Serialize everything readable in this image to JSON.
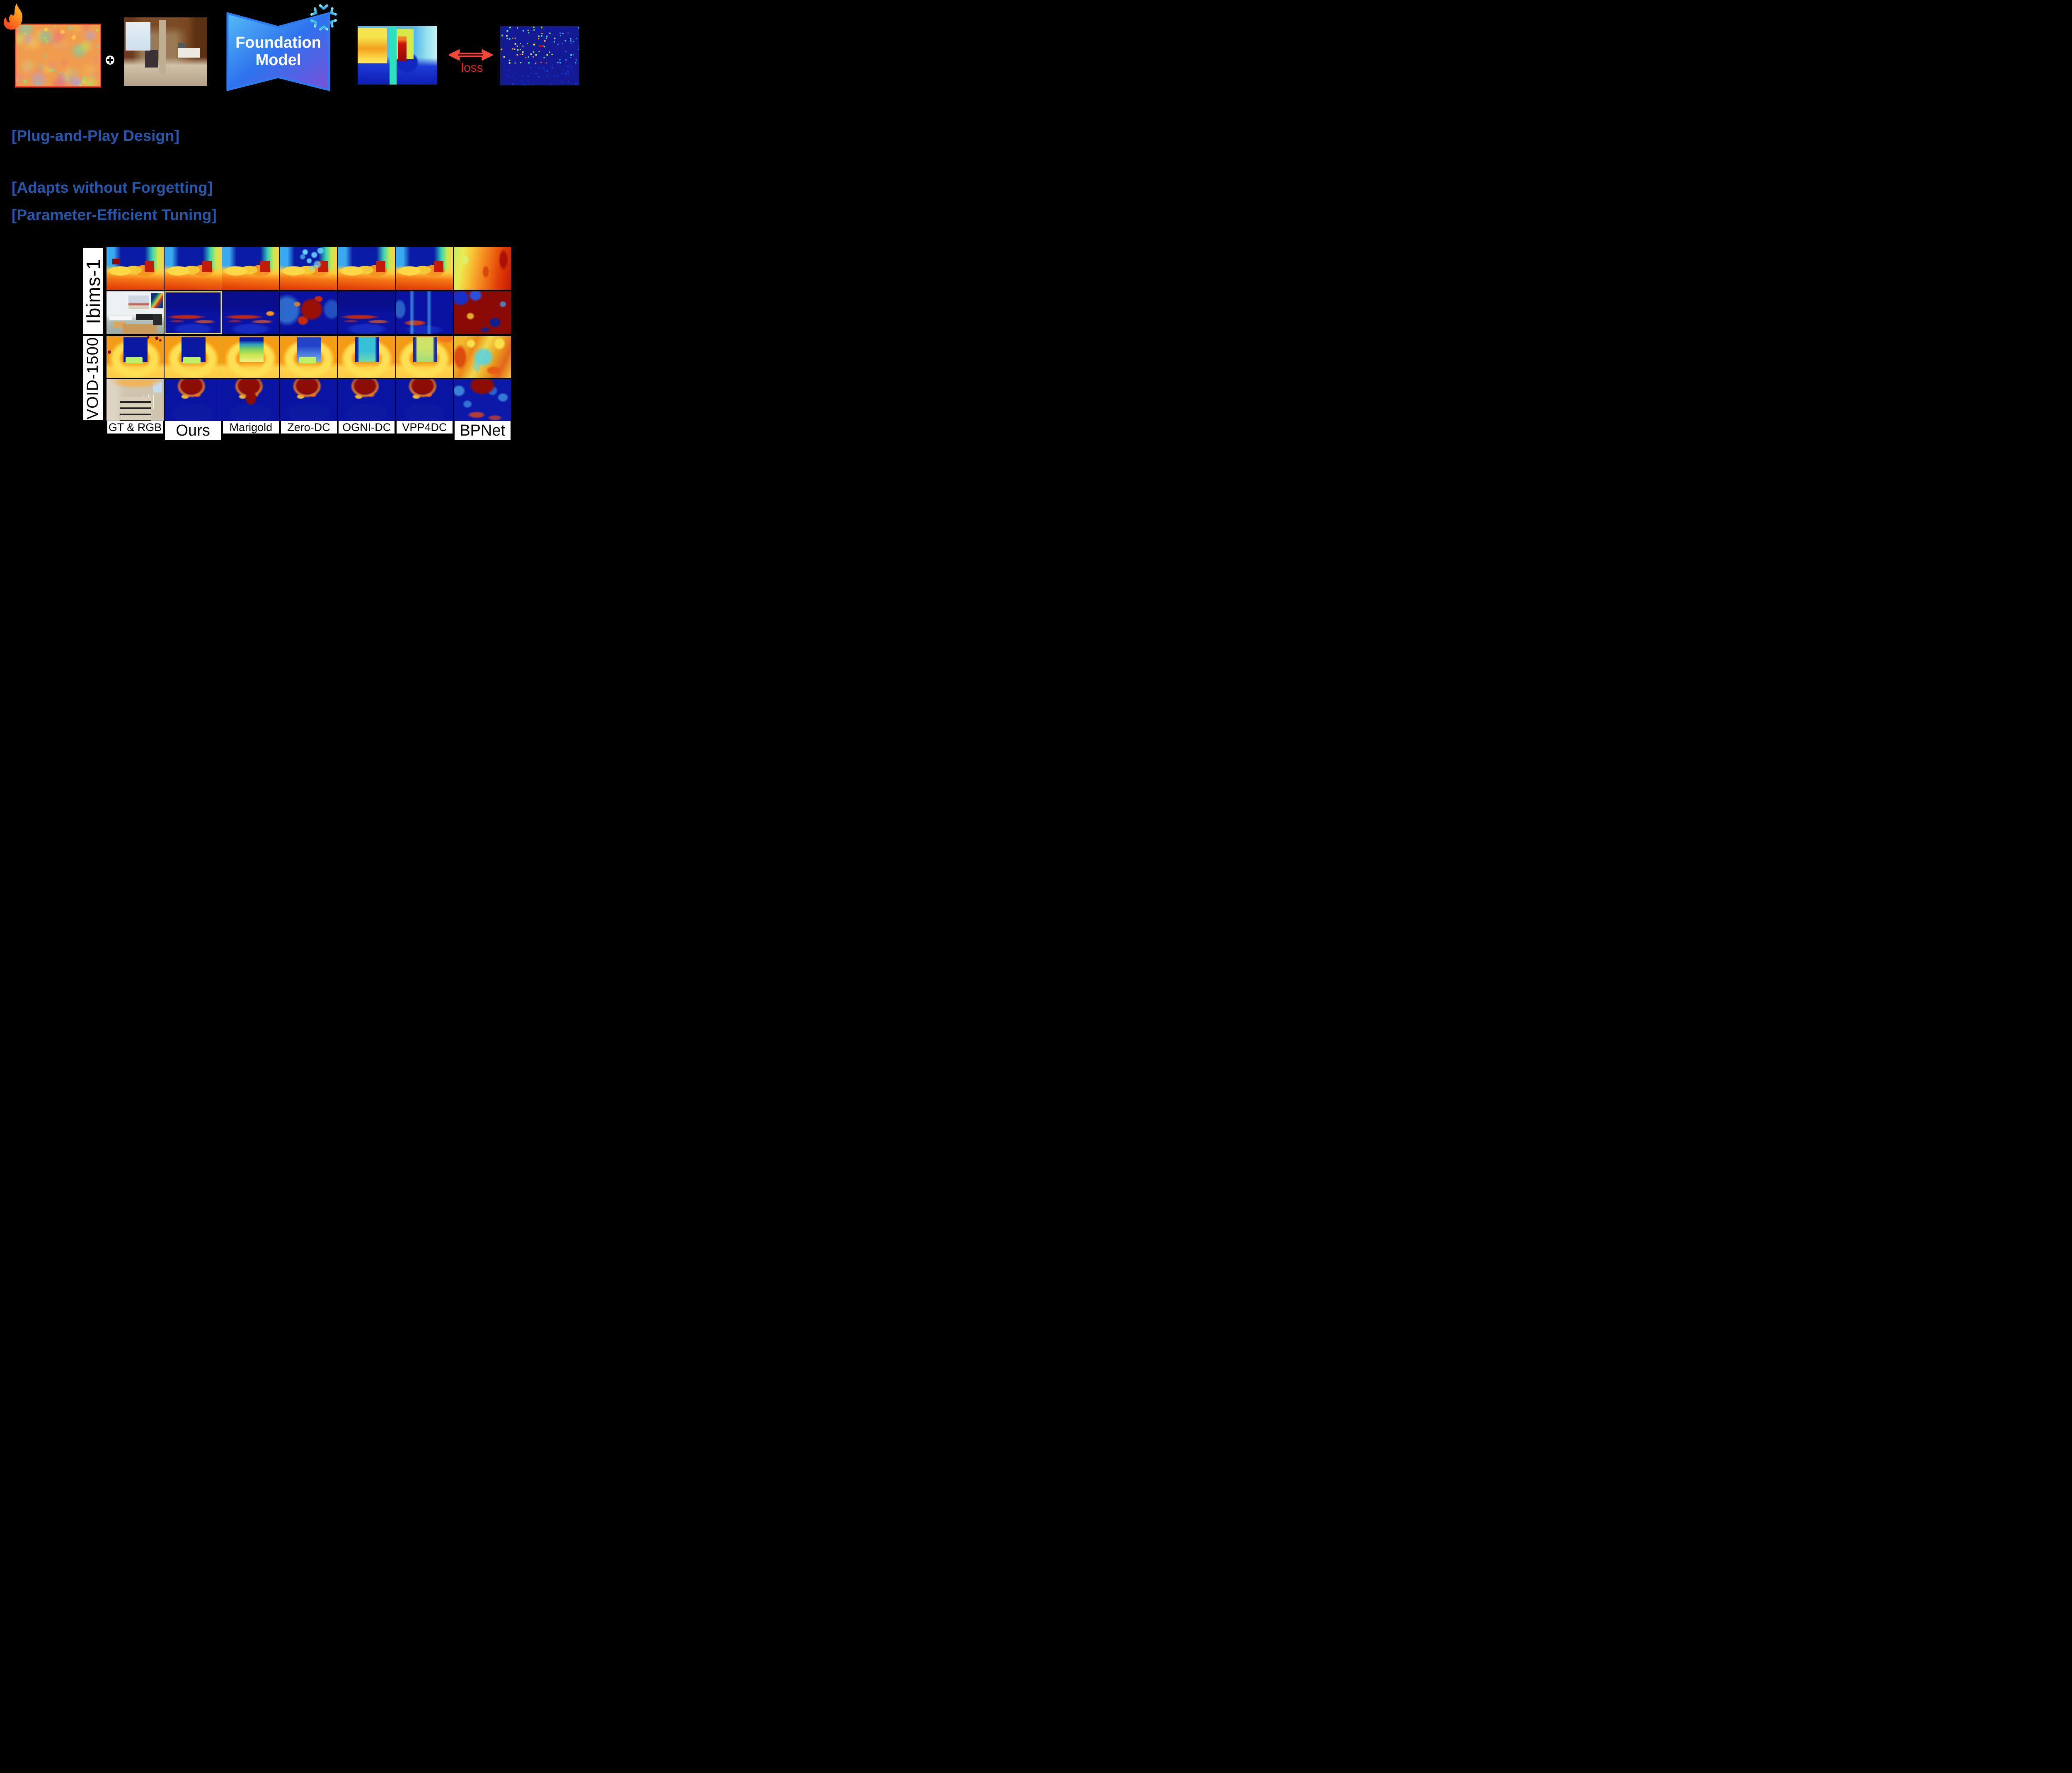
{
  "pipeline": {
    "plus_symbol": "⊕",
    "foundation_model": {
      "line1": "Foundation",
      "line2": "Model"
    },
    "loss_label": "loss",
    "icons": {
      "fire": "flame-icon",
      "snowflake": "snowflake-icon",
      "double_arrow": "compare-arrow-icon"
    },
    "images": [
      "feature-map",
      "rgb-input",
      "predicted-depth",
      "sparse-depth-points"
    ]
  },
  "bullets": [
    "[Plug-and-Play Design]",
    "[Adapts without Forgetting]",
    "[Parameter-Efficient Tuning]"
  ],
  "comparison": {
    "row_groups": [
      {
        "label": "Ibims-1"
      },
      {
        "label": "VOID-1500"
      }
    ],
    "columns": [
      "GT & RGB",
      "Ours",
      "Marigold",
      "Zero-DC",
      "OGNI-DC",
      "VPP4DC",
      "BPNet"
    ],
    "grid": [
      [
        "gt-ibims",
        "pred-ibims",
        "pred-ibims",
        "pred-ibims-noisy",
        "pred-ibims",
        "pred-ibims",
        "bp-ibims"
      ],
      [
        "rgb-classroom",
        "err-low",
        "err-edges",
        "err-high",
        "err-low",
        "err-streaks",
        "err-severe"
      ],
      [
        "gt-void",
        "pred-navy",
        "pred-green",
        "pred-blue",
        "pred-cyan",
        "pred-yellow",
        "bp-void"
      ],
      [
        "rgb-stairs",
        "verr",
        "verr-wide",
        "verr",
        "verr",
        "verr",
        "verr-bp"
      ]
    ],
    "highlight_cell": {
      "row": 1,
      "col": 1
    }
  },
  "colors": {
    "background": "#000000",
    "accent_text_blue": "#2757A8",
    "loss_red": "#EC1C24",
    "feature_map_border_red": "#F3402F",
    "highlight_yellow": "#F2E23C",
    "foundation_gradient": [
      "#54BCF6",
      "#2E72EE",
      "#7A50D8"
    ],
    "snowflake_cyan": "#35C0E8",
    "flame_orange": "#FFC024",
    "flame_red": "#F63F20"
  }
}
